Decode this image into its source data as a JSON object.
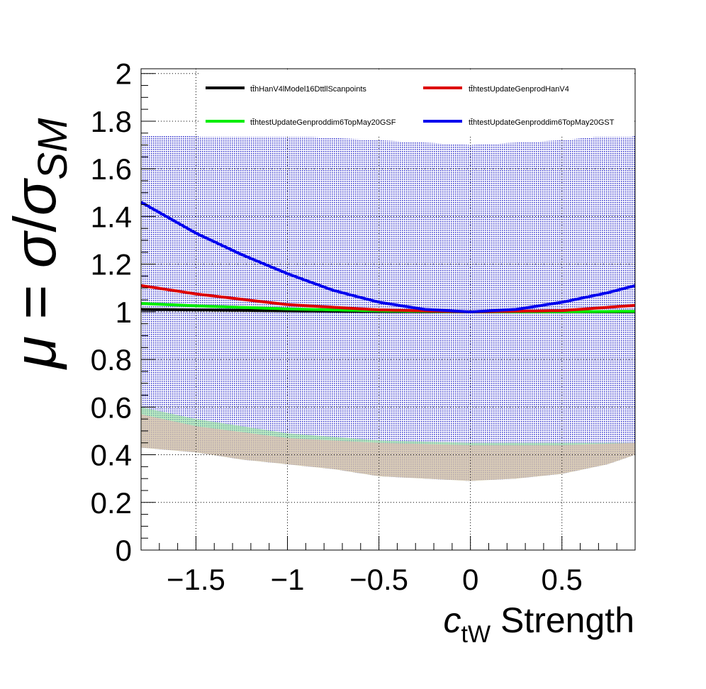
{
  "chart_data": {
    "type": "line",
    "ylabel_parts": {
      "mu": "μ",
      "eq": " = ",
      "sigma": "σ",
      "slash": "/",
      "sigma2": "σ",
      "sub": "SM"
    },
    "xlabel_parts": {
      "c": "c",
      "sub": "tW",
      "rest": " Strength"
    },
    "xlim": [
      -1.8,
      0.9
    ],
    "ylim": [
      0,
      2.02
    ],
    "grid": true,
    "legend_position": "top",
    "xticks": [
      {
        "value": -1.5,
        "label": "−1.5"
      },
      {
        "value": -1.0,
        "label": "−1"
      },
      {
        "value": -0.5,
        "label": "−0.5"
      },
      {
        "value": 0,
        "label": "0"
      },
      {
        "value": 0.5,
        "label": "0.5"
      }
    ],
    "yticks": [
      {
        "value": 0,
        "label": "0"
      },
      {
        "value": 0.2,
        "label": "0.2"
      },
      {
        "value": 0.4,
        "label": "0.4"
      },
      {
        "value": 0.6,
        "label": "0.6"
      },
      {
        "value": 0.8,
        "label": "0.8"
      },
      {
        "value": 1.0,
        "label": "1"
      },
      {
        "value": 1.2,
        "label": "1.2"
      },
      {
        "value": 1.4,
        "label": "1.4"
      },
      {
        "value": 1.6,
        "label": "1.6"
      },
      {
        "value": 1.8,
        "label": "1.8"
      },
      {
        "value": 2.0,
        "label": "2"
      }
    ],
    "series": [
      {
        "name": "tt̄hHanV4lModel16DttllScanpoints",
        "color": "#000000",
        "x": [
          -1.8,
          -1.5,
          -1.0,
          -0.5,
          0.0,
          0.5,
          0.9
        ],
        "y": [
          1.01,
          1.008,
          1.004,
          1.001,
          1.0,
          1.0,
          1.0
        ],
        "band_low": [
          0.46,
          0.45,
          0.44,
          0.44,
          0.44,
          0.44,
          0.44
        ]
      },
      {
        "name": "tt̄htestUpdateGenprodHanV4",
        "color": "#dd0000",
        "x": [
          -1.8,
          -1.5,
          -1.0,
          -0.5,
          0.0,
          0.5,
          0.9
        ],
        "y": [
          1.11,
          1.075,
          1.03,
          1.008,
          1.0,
          1.005,
          1.027
        ],
        "band_low": [
          0.57,
          0.52,
          0.47,
          0.45,
          0.44,
          0.44,
          0.45
        ]
      },
      {
        "name": "tt̄htestUpdateGenproddim6TopMay20GSF",
        "color": "#00ee00",
        "x": [
          -1.8,
          -1.5,
          -1.0,
          -0.5,
          0.0,
          0.5,
          0.9
        ],
        "y": [
          1.035,
          1.025,
          1.012,
          1.004,
          1.0,
          1.0,
          1.002
        ],
        "band_low": [
          0.6,
          0.55,
          0.49,
          0.46,
          0.45,
          0.45,
          0.45
        ]
      },
      {
        "name": "tt̄htestUpdateGenproddim6TopMay20GST",
        "color": "#0000ee",
        "x": [
          -1.8,
          -1.5,
          -1.25,
          -1.0,
          -0.75,
          -0.5,
          -0.25,
          0.0,
          0.25,
          0.5,
          0.75,
          0.9
        ],
        "y": [
          1.46,
          1.33,
          1.24,
          1.16,
          1.09,
          1.04,
          1.01,
          1.0,
          1.01,
          1.04,
          1.08,
          1.11
        ],
        "band_low": [
          0.43,
          0.41,
          0.38,
          0.36,
          0.34,
          0.31,
          0.3,
          0.29,
          0.3,
          0.32,
          0.36,
          0.4
        ],
        "band_high": [
          1.74,
          1.74,
          1.74,
          1.74,
          1.73,
          1.72,
          1.71,
          1.7,
          1.71,
          1.72,
          1.74,
          1.74
        ]
      }
    ]
  }
}
